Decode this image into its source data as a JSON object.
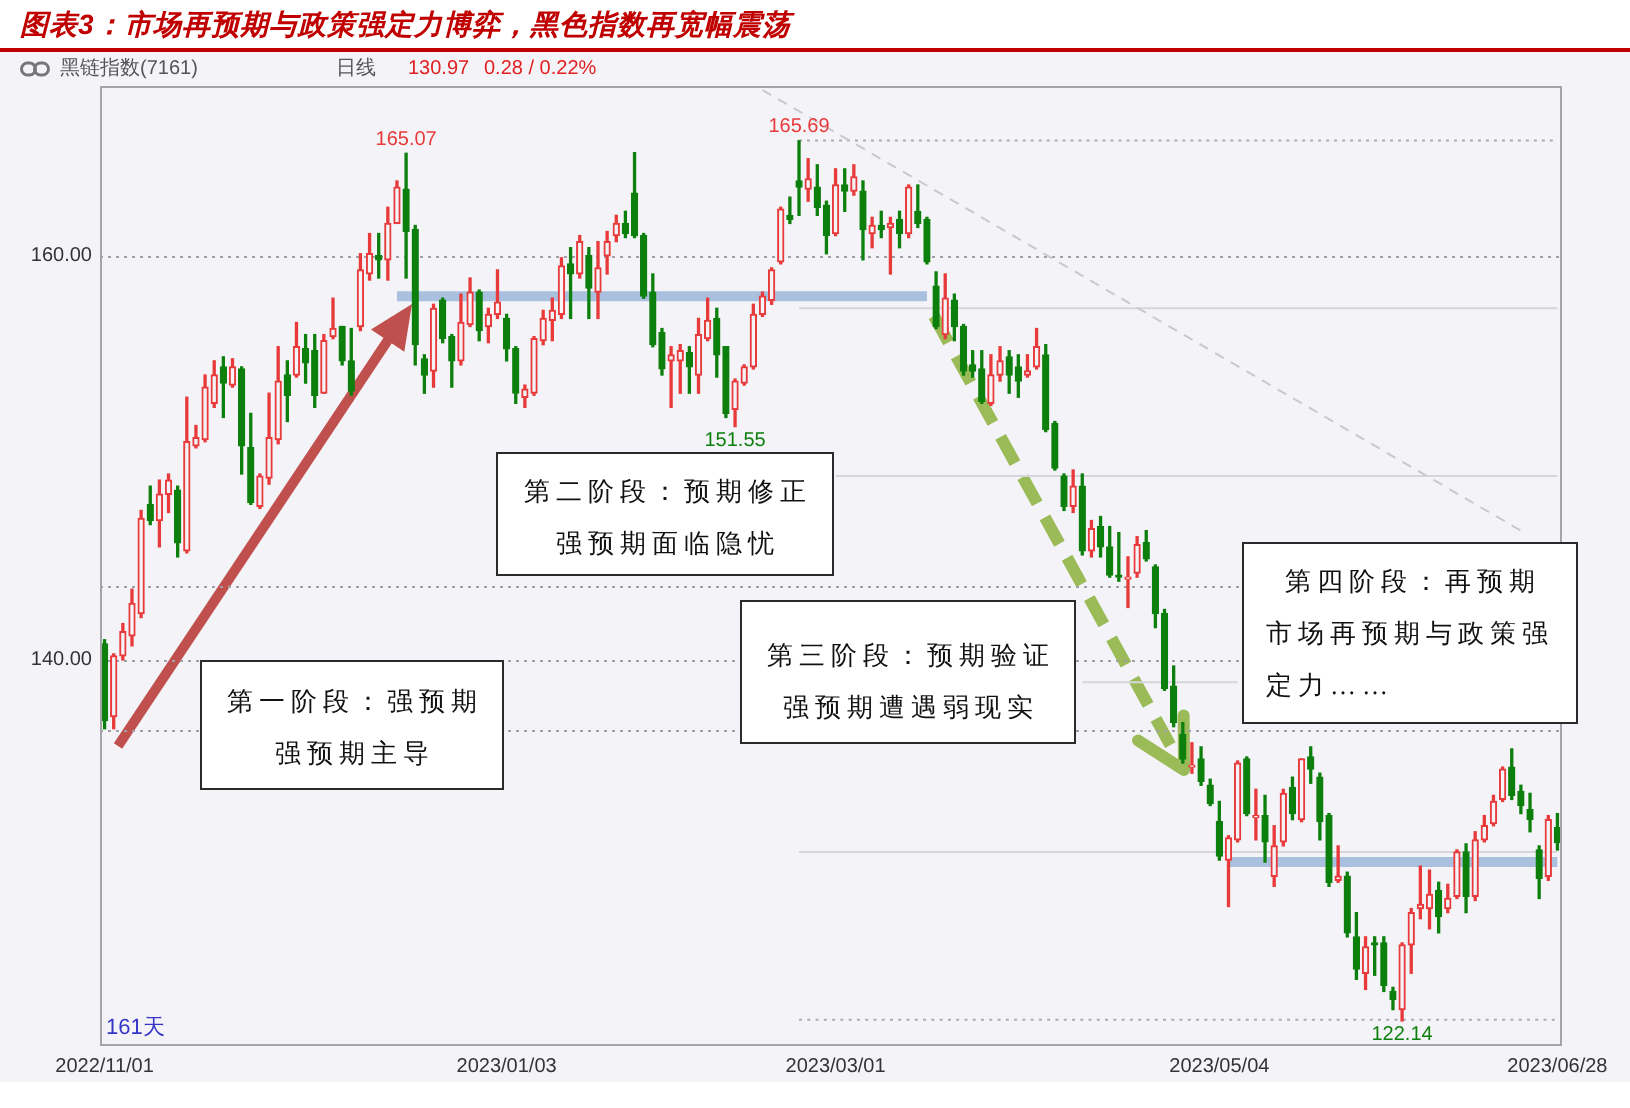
{
  "chart_data": {
    "type": "candlestick",
    "title": "图表3：市场再预期与政策强定力博弈，黑色指数再宽幅震荡",
    "subtitle": "黑链指数(7161)",
    "categories": [
      "2022/11/01",
      null,
      null,
      null,
      null,
      null,
      null,
      null,
      null,
      null,
      null,
      null,
      null,
      null,
      null,
      null,
      null,
      null,
      null,
      null,
      null,
      null,
      null,
      null,
      null,
      null,
      null,
      null,
      null,
      null,
      null,
      null,
      null,
      null,
      null,
      null,
      null,
      null,
      null,
      null,
      null,
      null,
      null,
      null,
      "2023/01/03",
      null,
      null,
      null,
      null,
      null,
      null,
      null,
      null,
      null,
      null,
      null,
      null,
      null,
      null,
      null,
      null,
      null,
      null,
      null,
      null,
      null,
      null,
      null,
      null,
      null,
      null,
      null,
      null,
      null,
      null,
      null,
      null,
      null,
      null,
      null,
      "2023/03/01",
      null,
      null,
      null,
      null,
      null,
      null,
      null,
      null,
      null,
      null,
      null,
      null,
      null,
      null,
      null,
      null,
      null,
      null,
      null,
      null,
      null,
      null,
      null,
      null,
      null,
      null,
      null,
      null,
      null,
      null,
      null,
      null,
      null,
      null,
      null,
      null,
      null,
      null,
      null,
      null,
      null,
      "2023/05/04",
      null,
      null,
      null,
      null,
      null,
      null,
      null,
      null,
      null,
      null,
      null,
      null,
      null,
      null,
      null,
      null,
      null,
      null,
      null,
      null,
      null,
      null,
      null,
      null,
      null,
      null,
      null,
      null,
      null,
      null,
      null,
      null,
      null,
      null,
      null,
      null,
      "2023/06/28"
    ],
    "ohlc": [
      [
        140.8,
        141.0,
        136.6,
        137.0
      ],
      [
        137.2,
        140.3,
        136.6,
        140.2
      ],
      [
        140.2,
        141.8,
        140.0,
        141.4
      ],
      [
        141.2,
        143.5,
        140.7,
        142.8
      ],
      [
        142.3,
        147.4,
        142.1,
        147.0
      ],
      [
        147.7,
        148.6,
        146.7,
        146.9
      ],
      [
        146.9,
        148.9,
        145.6,
        148.2
      ],
      [
        148.2,
        149.2,
        147.3,
        148.9
      ],
      [
        148.4,
        148.6,
        145.1,
        145.8
      ],
      [
        145.4,
        153.0,
        145.3,
        150.8
      ],
      [
        150.6,
        151.6,
        150.5,
        151.0
      ],
      [
        150.9,
        154.1,
        150.8,
        153.5
      ],
      [
        152.7,
        154.8,
        152.5,
        154.1
      ],
      [
        154.5,
        155.0,
        152.0,
        153.7
      ],
      [
        153.6,
        154.9,
        153.5,
        154.5
      ],
      [
        154.4,
        154.5,
        149.2,
        150.6
      ],
      [
        150.5,
        152.2,
        147.7,
        147.8
      ],
      [
        147.6,
        149.2,
        147.5,
        149.1
      ],
      [
        149.0,
        153.2,
        148.7,
        151.0
      ],
      [
        150.9,
        155.5,
        150.7,
        153.8
      ],
      [
        154.1,
        154.8,
        151.8,
        153.1
      ],
      [
        154.1,
        156.7,
        154.0,
        155.5
      ],
      [
        155.4,
        156.1,
        153.7,
        154.7
      ],
      [
        155.3,
        156.1,
        152.5,
        153.1
      ],
      [
        153.2,
        156.1,
        153.2,
        155.8
      ],
      [
        156.0,
        157.9,
        155.9,
        156.4
      ],
      [
        156.5,
        156.5,
        154.6,
        154.8
      ],
      [
        154.8,
        156.4,
        153.1,
        153.3
      ],
      [
        156.5,
        160.1,
        156.3,
        159.3
      ],
      [
        159.1,
        161.1,
        158.8,
        160.1
      ],
      [
        160.0,
        161.1,
        158.9,
        159.8
      ],
      [
        159.8,
        162.4,
        158.8,
        161.6
      ],
      [
        161.6,
        163.7,
        161.6,
        163.4
      ],
      [
        163.3,
        165.07,
        158.9,
        161.2
      ],
      [
        161.3,
        161.5,
        154.6,
        155.6
      ],
      [
        154.9,
        155.1,
        153.2,
        154.1
      ],
      [
        154.3,
        157.6,
        153.5,
        157.4
      ],
      [
        157.8,
        157.9,
        155.7,
        155.9
      ],
      [
        156.0,
        156.1,
        153.5,
        154.8
      ],
      [
        154.8,
        158.1,
        154.6,
        156.7
      ],
      [
        156.6,
        158.9,
        156.5,
        158.2
      ],
      [
        158.2,
        158.3,
        155.8,
        156.3
      ],
      [
        156.5,
        157.4,
        155.7,
        157.1
      ],
      [
        157.1,
        159.3,
        156.9,
        157.7
      ],
      [
        156.9,
        157.1,
        154.8,
        155.4
      ],
      [
        155.4,
        155.5,
        152.7,
        153.2
      ],
      [
        153.0,
        153.6,
        152.5,
        153.4
      ],
      [
        153.2,
        156.0,
        153.1,
        155.9
      ],
      [
        155.8,
        157.3,
        155.6,
        156.9
      ],
      [
        156.8,
        157.9,
        155.8,
        157.3
      ],
      [
        157.1,
        159.9,
        156.9,
        159.5
      ],
      [
        159.6,
        160.4,
        156.9,
        159.1
      ],
      [
        159.1,
        161.0,
        158.9,
        160.7
      ],
      [
        160.0,
        160.4,
        156.9,
        158.4
      ],
      [
        158.2,
        160.7,
        156.9,
        159.4
      ],
      [
        160.0,
        161.2,
        159.1,
        160.7
      ],
      [
        161.0,
        162.0,
        160.7,
        161.6
      ],
      [
        161.6,
        162.2,
        160.9,
        161.1
      ],
      [
        163.1,
        165.1,
        160.9,
        161.0
      ],
      [
        161.0,
        161.1,
        157.9,
        158.0
      ],
      [
        158.2,
        159.1,
        155.5,
        155.6
      ],
      [
        156.2,
        156.4,
        154.1,
        154.4
      ],
      [
        154.8,
        155.5,
        152.5,
        155.1
      ],
      [
        154.8,
        155.6,
        153.2,
        155.3
      ],
      [
        155.2,
        155.5,
        153.2,
        154.5
      ],
      [
        154.1,
        156.9,
        153.2,
        156.1
      ],
      [
        155.9,
        157.9,
        155.8,
        156.8
      ],
      [
        156.9,
        157.4,
        154.0,
        155.1
      ],
      [
        155.5,
        155.5,
        152.0,
        152.2
      ],
      [
        152.4,
        153.9,
        151.55,
        153.8
      ],
      [
        153.7,
        154.6,
        153.6,
        154.5
      ],
      [
        154.5,
        157.6,
        154.4,
        157.1
      ],
      [
        157.1,
        158.2,
        157.0,
        158.0
      ],
      [
        157.8,
        159.4,
        157.6,
        159.3
      ],
      [
        159.7,
        162.4,
        159.6,
        162.3
      ],
      [
        162.0,
        162.9,
        161.6,
        161.8
      ],
      [
        163.7,
        165.69,
        162.0,
        163.4
      ],
      [
        163.3,
        164.8,
        162.7,
        163.8
      ],
      [
        163.4,
        164.5,
        162.0,
        162.4
      ],
      [
        162.5,
        162.7,
        160.1,
        161.0
      ],
      [
        161.1,
        164.3,
        161.0,
        163.5
      ],
      [
        163.5,
        164.3,
        162.2,
        163.2
      ],
      [
        163.2,
        164.5,
        163.0,
        163.9
      ],
      [
        163.2,
        163.7,
        159.8,
        161.3
      ],
      [
        161.1,
        161.9,
        160.4,
        161.5
      ],
      [
        161.5,
        162.2,
        160.9,
        161.3
      ],
      [
        161.4,
        161.9,
        159.1,
        161.6
      ],
      [
        161.8,
        162.2,
        160.4,
        161.1
      ],
      [
        161.1,
        163.5,
        160.9,
        163.4
      ],
      [
        162.2,
        163.5,
        161.4,
        161.6
      ],
      [
        161.8,
        161.9,
        159.6,
        159.7
      ],
      [
        158.5,
        159.2,
        156.4,
        156.5
      ],
      [
        156.1,
        159.1,
        155.9,
        157.9
      ],
      [
        157.8,
        158.1,
        155.8,
        156.5
      ],
      [
        156.5,
        156.6,
        154.1,
        154.3
      ],
      [
        154.6,
        155.3,
        154.0,
        154.3
      ],
      [
        154.4,
        155.3,
        152.7,
        152.8
      ],
      [
        152.7,
        155.1,
        152.6,
        154.1
      ],
      [
        154.1,
        155.5,
        153.8,
        154.8
      ],
      [
        155.0,
        155.3,
        153.2,
        154.1
      ],
      [
        154.5,
        155.1,
        153.0,
        153.8
      ],
      [
        154.1,
        155.1,
        154.0,
        154.3
      ],
      [
        154.5,
        156.4,
        154.4,
        155.5
      ],
      [
        155.1,
        155.6,
        151.3,
        151.4
      ],
      [
        151.7,
        151.8,
        149.4,
        149.5
      ],
      [
        149.1,
        149.2,
        147.4,
        147.6
      ],
      [
        147.6,
        149.4,
        147.3,
        148.6
      ],
      [
        148.6,
        149.2,
        145.2,
        145.4
      ],
      [
        145.4,
        146.9,
        145.1,
        146.5
      ],
      [
        146.6,
        147.1,
        145.1,
        145.6
      ],
      [
        145.6,
        146.6,
        144.1,
        144.2
      ],
      [
        144.2,
        146.3,
        143.9,
        144.1
      ],
      [
        144.0,
        145.1,
        142.6,
        144.1
      ],
      [
        144.3,
        146.1,
        144.1,
        145.7
      ],
      [
        145.8,
        146.4,
        144.9,
        145.0
      ],
      [
        144.6,
        144.7,
        141.6,
        142.3
      ],
      [
        142.3,
        142.5,
        138.5,
        138.6
      ],
      [
        138.7,
        139.7,
        136.7,
        136.9
      ],
      [
        136.3,
        136.9,
        134.9,
        135.1
      ],
      [
        134.7,
        135.9,
        134.4,
        134.8
      ],
      [
        135.1,
        135.7,
        133.8,
        134.0
      ],
      [
        133.8,
        134.1,
        132.8,
        132.9
      ],
      [
        132.0,
        133.0,
        130.1,
        130.3
      ],
      [
        130.1,
        131.3,
        127.8,
        131.2
      ],
      [
        131.1,
        135.0,
        131.0,
        134.9
      ],
      [
        135.1,
        135.2,
        132.3,
        132.4
      ],
      [
        132.2,
        133.6,
        131.1,
        132.3
      ],
      [
        132.3,
        133.3,
        130.0,
        131.0
      ],
      [
        129.3,
        131.8,
        128.8,
        130.8
      ],
      [
        131.0,
        133.6,
        130.8,
        133.4
      ],
      [
        133.7,
        134.2,
        132.1,
        132.4
      ],
      [
        132.1,
        135.1,
        132.0,
        135.1
      ],
      [
        135.2,
        135.7,
        133.9,
        134.6
      ],
      [
        134.2,
        134.4,
        131.1,
        132.0
      ],
      [
        132.3,
        132.4,
        128.8,
        129.0
      ],
      [
        129.1,
        130.8,
        129.0,
        129.3
      ],
      [
        129.3,
        129.5,
        126.3,
        126.5
      ],
      [
        126.3,
        127.5,
        124.2,
        124.7
      ],
      [
        124.5,
        126.3,
        123.7,
        125.8
      ],
      [
        126.0,
        126.3,
        124.4,
        125.9
      ],
      [
        126.0,
        126.3,
        123.6,
        123.9
      ],
      [
        123.6,
        123.8,
        122.7,
        123.2
      ],
      [
        122.7,
        126.0,
        122.14,
        125.9
      ],
      [
        125.9,
        127.7,
        124.5,
        127.5
      ],
      [
        127.7,
        129.8,
        127.2,
        127.9
      ],
      [
        127.7,
        129.6,
        126.7,
        128.4
      ],
      [
        128.6,
        129.0,
        126.5,
        127.3
      ],
      [
        127.7,
        128.9,
        127.5,
        128.2
      ],
      [
        128.3,
        130.6,
        128.2,
        130.5
      ],
      [
        130.5,
        130.9,
        127.5,
        128.3
      ],
      [
        128.3,
        131.5,
        128.1,
        131.1
      ],
      [
        131.1,
        132.3,
        131.0,
        131.8
      ],
      [
        131.9,
        133.3,
        131.8,
        133.0
      ],
      [
        133.1,
        134.7,
        133.0,
        134.6
      ],
      [
        134.7,
        135.6,
        133.1,
        133.3
      ],
      [
        133.5,
        133.8,
        132.4,
        132.8
      ],
      [
        132.6,
        133.4,
        131.5,
        132.1
      ],
      [
        130.6,
        130.8,
        128.2,
        129.2
      ],
      [
        129.3,
        132.3,
        129.1,
        132.1
      ],
      [
        131.7,
        132.4,
        130.6,
        130.97
      ]
    ],
    "series": [
      {
        "type": "line",
        "color": "#a9c0de",
        "values": [
          null,
          null,
          null,
          null,
          null,
          null,
          null,
          null,
          null,
          null,
          null,
          null,
          null,
          null,
          null,
          null,
          null,
          null,
          null,
          null,
          null,
          null,
          null,
          null,
          null,
          null,
          null,
          null,
          null,
          null,
          null,
          null,
          158,
          null,
          null,
          null,
          null,
          null,
          null,
          null,
          null,
          null,
          null,
          null,
          null,
          null,
          null,
          null,
          null,
          null,
          null,
          null,
          null,
          null,
          null,
          null,
          null,
          null,
          null,
          null,
          null,
          null,
          null,
          null,
          null,
          null,
          null,
          null,
          null,
          null,
          null,
          null,
          null,
          null,
          null,
          null,
          null,
          null,
          null,
          null,
          null,
          null,
          null,
          null,
          null,
          null,
          null,
          null,
          null,
          null,
          158,
          null,
          null,
          null,
          null,
          null,
          null,
          null,
          null,
          null,
          null,
          null,
          null,
          null,
          null,
          null,
          null,
          null,
          null,
          null,
          null,
          null,
          null,
          null,
          null,
          null,
          null,
          null,
          null,
          null,
          null,
          null,
          null,
          null,
          null,
          null,
          null,
          null,
          null,
          null,
          null,
          null,
          null,
          null,
          null,
          null,
          null,
          null,
          null,
          null,
          null,
          null,
          null,
          null,
          null,
          null,
          null,
          null,
          null,
          null,
          null,
          null,
          null,
          null,
          null,
          null,
          null,
          null,
          null,
          null
        ]
      },
      {
        "type": "line",
        "color": "#a9c0de",
        "values": [
          null,
          null,
          null,
          null,
          null,
          null,
          null,
          null,
          null,
          null,
          null,
          null,
          null,
          null,
          null,
          null,
          null,
          null,
          null,
          null,
          null,
          null,
          null,
          null,
          null,
          null,
          null,
          null,
          null,
          null,
          null,
          null,
          null,
          null,
          null,
          null,
          null,
          null,
          null,
          null,
          null,
          null,
          null,
          null,
          null,
          null,
          null,
          null,
          null,
          null,
          null,
          null,
          null,
          null,
          null,
          null,
          null,
          null,
          null,
          null,
          null,
          null,
          null,
          null,
          null,
          null,
          null,
          null,
          null,
          null,
          null,
          null,
          null,
          null,
          null,
          null,
          null,
          null,
          null,
          null,
          null,
          null,
          null,
          null,
          null,
          null,
          null,
          null,
          null,
          null,
          null,
          null,
          null,
          null,
          null,
          null,
          null,
          null,
          null,
          null,
          null,
          null,
          null,
          null,
          null,
          null,
          null,
          null,
          null,
          null,
          null,
          null,
          null,
          null,
          null,
          null,
          null,
          null,
          null,
          null,
          null,
          null,
          null,
          130,
          null,
          null,
          null,
          null,
          null,
          null,
          null,
          null,
          null,
          null,
          null,
          null,
          null,
          null,
          null,
          null,
          null,
          null,
          null,
          null,
          null,
          null,
          null,
          null,
          null,
          null,
          null,
          null,
          null,
          null,
          null,
          null,
          null,
          null,
          null,
          130
        ]
      },
      {
        "type": "line",
        "color": "#c8c8ce",
        "line_style": "dashed",
        "values": [
          null,
          null,
          null,
          null,
          null,
          null,
          null,
          null,
          null,
          null,
          null,
          null,
          null,
          null,
          null,
          null,
          null,
          null,
          null,
          null,
          null,
          null,
          null,
          null,
          null,
          null,
          null,
          null,
          null,
          null,
          null,
          null,
          null,
          null,
          null,
          null,
          null,
          null,
          null,
          null,
          null,
          null,
          null,
          null,
          null,
          null,
          null,
          null,
          null,
          null,
          null,
          null,
          null,
          null,
          null,
          null,
          null,
          null,
          null,
          null,
          null,
          null,
          null,
          null,
          null,
          null,
          null,
          null,
          null,
          null,
          null,
          null,
          168.2,
          null,
          null,
          null,
          null,
          null,
          null,
          null,
          null,
          null,
          null,
          null,
          null,
          null,
          null,
          null,
          null,
          null,
          null,
          null,
          null,
          null,
          null,
          null,
          null,
          null,
          null,
          null,
          null,
          null,
          null,
          null,
          null,
          null,
          null,
          null,
          null,
          null,
          null,
          null,
          null,
          null,
          null,
          null,
          null,
          null,
          null,
          null,
          null,
          null,
          null,
          null,
          null,
          null,
          null,
          null,
          null,
          null,
          null,
          null,
          null,
          null,
          null,
          null,
          null,
          null,
          null,
          null,
          null,
          null,
          null,
          null,
          null,
          null,
          null,
          null,
          null,
          null,
          null,
          null,
          null,
          null,
          null,
          146.4,
          null,
          null,
          null,
          null
        ]
      },
      {
        "type": "line",
        "color": "#d6d6da",
        "values": [
          null,
          null,
          null,
          null,
          null,
          null,
          null,
          null,
          null,
          null,
          null,
          null,
          null,
          null,
          null,
          null,
          null,
          null,
          null,
          null,
          null,
          null,
          null,
          null,
          null,
          null,
          null,
          null,
          null,
          null,
          null,
          null,
          null,
          null,
          null,
          null,
          null,
          null,
          null,
          null,
          null,
          null,
          null,
          null,
          null,
          null,
          null,
          null,
          null,
          null,
          null,
          null,
          null,
          null,
          null,
          null,
          null,
          null,
          null,
          null,
          null,
          null,
          null,
          null,
          null,
          null,
          null,
          null,
          null,
          null,
          null,
          null,
          null,
          null,
          null,
          null,
          157.4,
          null,
          null,
          null,
          null,
          null,
          null,
          null,
          null,
          null,
          null,
          null,
          null,
          null,
          null,
          null,
          null,
          null,
          null,
          null,
          null,
          null,
          null,
          null,
          null,
          null,
          null,
          null,
          null,
          null,
          null,
          null,
          null,
          null,
          null,
          null,
          null,
          null,
          null,
          null,
          null,
          null,
          null,
          null,
          null,
          null,
          null,
          null,
          null,
          null,
          null,
          null,
          null,
          null,
          null,
          null,
          null,
          null,
          null,
          null,
          null,
          null,
          null,
          null,
          null,
          null,
          null,
          null,
          null,
          null,
          null,
          null,
          null,
          null,
          null,
          null,
          null,
          null,
          null,
          null,
          null,
          null,
          null,
          157.4
        ]
      },
      {
        "type": "line",
        "color": "#d6d6da",
        "values": [
          null,
          null,
          null,
          null,
          null,
          null,
          null,
          null,
          null,
          null,
          null,
          null,
          null,
          null,
          null,
          null,
          null,
          null,
          null,
          null,
          null,
          null,
          null,
          null,
          null,
          null,
          null,
          null,
          null,
          null,
          null,
          null,
          null,
          null,
          null,
          null,
          null,
          null,
          null,
          null,
          null,
          null,
          null,
          null,
          null,
          null,
          null,
          null,
          null,
          null,
          null,
          null,
          null,
          null,
          null,
          null,
          null,
          null,
          null,
          null,
          null,
          null,
          null,
          null,
          null,
          null,
          null,
          null,
          null,
          null,
          null,
          null,
          null,
          null,
          null,
          null,
          null,
          null,
          null,
          null,
          149.1,
          null,
          null,
          null,
          null,
          null,
          null,
          null,
          null,
          null,
          null,
          null,
          null,
          null,
          null,
          null,
          null,
          null,
          null,
          null,
          null,
          null,
          null,
          null,
          null,
          null,
          null,
          null,
          null,
          null,
          null,
          null,
          null,
          null,
          null,
          null,
          null,
          null,
          null,
          null,
          null,
          null,
          null,
          null,
          null,
          null,
          null,
          null,
          null,
          null,
          null,
          null,
          null,
          null,
          null,
          null,
          null,
          null,
          null,
          null,
          null,
          null,
          null,
          null,
          null,
          null,
          null,
          null,
          null,
          null,
          null,
          null,
          null,
          null,
          null,
          null,
          null,
          null,
          null,
          149.1
        ]
      },
      {
        "type": "line",
        "color": "#d6d6da",
        "values": [
          null,
          null,
          null,
          null,
          null,
          null,
          null,
          null,
          null,
          null,
          null,
          null,
          null,
          null,
          null,
          null,
          null,
          null,
          null,
          null,
          null,
          null,
          null,
          null,
          null,
          null,
          null,
          null,
          null,
          null,
          null,
          null,
          null,
          null,
          null,
          null,
          null,
          null,
          null,
          null,
          null,
          null,
          null,
          null,
          null,
          null,
          null,
          null,
          null,
          null,
          null,
          null,
          null,
          null,
          null,
          null,
          null,
          null,
          null,
          null,
          null,
          null,
          null,
          null,
          null,
          null,
          null,
          null,
          null,
          null,
          null,
          null,
          null,
          null,
          null,
          null,
          null,
          null,
          null,
          null,
          null,
          null,
          null,
          null,
          null,
          null,
          null,
          null,
          null,
          null,
          null,
          null,
          null,
          null,
          null,
          null,
          null,
          null,
          null,
          null,
          null,
          null,
          null,
          null,
          null,
          null,
          null,
          138.9,
          null,
          null,
          null,
          null,
          null,
          null,
          null,
          null,
          null,
          null,
          null,
          null,
          null,
          null,
          null,
          null,
          138.9,
          null,
          null,
          null,
          null,
          null,
          null,
          null,
          null,
          null,
          null,
          null,
          null,
          null,
          null,
          null,
          null,
          null,
          null,
          null,
          null,
          null,
          null,
          null,
          null,
          null,
          null,
          null,
          null,
          null,
          null,
          null,
          null,
          null,
          null,
          null
        ]
      },
      {
        "type": "line",
        "color": "#d6d6da",
        "values": [
          null,
          null,
          null,
          null,
          null,
          null,
          null,
          null,
          null,
          null,
          null,
          null,
          null,
          null,
          null,
          null,
          null,
          null,
          null,
          null,
          null,
          null,
          null,
          null,
          null,
          null,
          null,
          null,
          null,
          null,
          null,
          null,
          null,
          null,
          null,
          null,
          null,
          null,
          null,
          null,
          null,
          null,
          null,
          null,
          null,
          null,
          null,
          null,
          null,
          null,
          null,
          null,
          null,
          null,
          null,
          null,
          null,
          null,
          null,
          null,
          null,
          null,
          null,
          null,
          null,
          null,
          null,
          null,
          null,
          null,
          null,
          null,
          null,
          null,
          null,
          null,
          130.5,
          null,
          null,
          null,
          null,
          null,
          null,
          null,
          null,
          null,
          null,
          null,
          null,
          null,
          null,
          null,
          null,
          null,
          null,
          null,
          null,
          null,
          null,
          null,
          null,
          null,
          null,
          null,
          null,
          null,
          null,
          null,
          null,
          null,
          null,
          null,
          null,
          null,
          null,
          null,
          null,
          null,
          null,
          null,
          null,
          null,
          null,
          null,
          null,
          null,
          null,
          null,
          null,
          null,
          null,
          null,
          null,
          null,
          null,
          null,
          null,
          null,
          null,
          null,
          null,
          null,
          null,
          null,
          null,
          null,
          null,
          null,
          null,
          null,
          null,
          null,
          null,
          null,
          null,
          null,
          null,
          null,
          null,
          130.5
        ]
      },
      {
        "type": "line",
        "color": "#ababb0",
        "line_style": "dotted",
        "values": [
          null,
          null,
          null,
          null,
          null,
          null,
          null,
          null,
          null,
          null,
          null,
          null,
          null,
          null,
          null,
          null,
          null,
          null,
          null,
          null,
          null,
          null,
          null,
          null,
          null,
          null,
          null,
          null,
          null,
          null,
          null,
          null,
          null,
          null,
          null,
          null,
          null,
          null,
          null,
          null,
          null,
          null,
          null,
          null,
          null,
          null,
          null,
          null,
          null,
          null,
          null,
          null,
          null,
          null,
          null,
          null,
          null,
          null,
          null,
          null,
          null,
          null,
          null,
          null,
          null,
          null,
          null,
          null,
          null,
          null,
          null,
          null,
          null,
          null,
          null,
          null,
          165.7,
          null,
          null,
          null,
          null,
          null,
          null,
          null,
          null,
          null,
          null,
          null,
          null,
          null,
          null,
          null,
          null,
          null,
          null,
          null,
          null,
          null,
          null,
          null,
          null,
          null,
          null,
          null,
          null,
          null,
          null,
          null,
          null,
          null,
          null,
          null,
          null,
          null,
          null,
          null,
          null,
          null,
          null,
          null,
          null,
          null,
          null,
          null,
          null,
          null,
          null,
          null,
          null,
          null,
          null,
          null,
          null,
          null,
          null,
          null,
          null,
          null,
          null,
          null,
          null,
          null,
          null,
          null,
          null,
          null,
          null,
          null,
          null,
          null,
          null,
          null,
          null,
          null,
          null,
          null,
          null,
          null,
          null,
          165.7
        ]
      },
      {
        "type": "line",
        "color": "#ababb0",
        "line_style": "dotted",
        "values": [
          null,
          null,
          null,
          null,
          null,
          null,
          null,
          null,
          null,
          null,
          null,
          null,
          null,
          null,
          null,
          null,
          null,
          null,
          null,
          null,
          null,
          null,
          null,
          null,
          null,
          null,
          null,
          null,
          null,
          null,
          null,
          null,
          null,
          null,
          null,
          null,
          null,
          null,
          null,
          null,
          null,
          null,
          null,
          null,
          null,
          null,
          null,
          null,
          null,
          null,
          null,
          null,
          null,
          null,
          null,
          null,
          null,
          null,
          null,
          null,
          null,
          null,
          null,
          null,
          null,
          null,
          null,
          null,
          null,
          null,
          null,
          null,
          null,
          null,
          null,
          null,
          122.2,
          null,
          null,
          null,
          null,
          null,
          null,
          null,
          null,
          null,
          null,
          null,
          null,
          null,
          null,
          null,
          null,
          null,
          null,
          null,
          null,
          null,
          null,
          null,
          null,
          null,
          null,
          null,
          null,
          null,
          null,
          null,
          null,
          null,
          null,
          null,
          null,
          null,
          null,
          null,
          null,
          null,
          null,
          null,
          null,
          null,
          null,
          null,
          null,
          null,
          null,
          null,
          null,
          null,
          null,
          null,
          null,
          null,
          null,
          null,
          null,
          null,
          null,
          null,
          null,
          null,
          null,
          null,
          null,
          null,
          null,
          null,
          null,
          null,
          null,
          null,
          null,
          null,
          null,
          null,
          null,
          null,
          null,
          122.2
        ]
      }
    ],
    "ylim": [
      120.9,
      168.4
    ],
    "yticks": [
      {
        "value": 160,
        "label": "160.00"
      },
      {
        "value": 140,
        "label": "140.00"
      }
    ],
    "ref_lines": [
      {
        "axis": "y",
        "value": 160,
        "color": "#a0a0a6",
        "line_style": "dotted"
      },
      {
        "axis": "y",
        "value": 140,
        "color": "#a0a0a6",
        "line_style": "dotted"
      },
      {
        "axis": "y",
        "value": 143.7,
        "color": "#a0a0a6",
        "line_style": "dotted"
      },
      {
        "axis": "y",
        "value": 136.5,
        "color": "#a0a0a6",
        "line_style": "dotted"
      }
    ],
    "annotations": [
      "第一阶段：强预期",
      "强预期主导",
      "第二阶段：预期修正",
      "强预期面临隐忧",
      "第三阶段：预期验证",
      "强预期遭遇弱现实",
      "第四阶段：再预期",
      "市场再预期与政策强定力……",
      {
        "text": "165.07",
        "y": 165.07
      },
      {
        "text": "165.69",
        "y": 165.69
      },
      {
        "text": "151.55",
        "y": 151.55
      },
      {
        "text": "122.14",
        "y": 122.14
      },
      "161天",
      "日线",
      "130.97",
      "0.28 / 0.22%"
    ]
  }
}
